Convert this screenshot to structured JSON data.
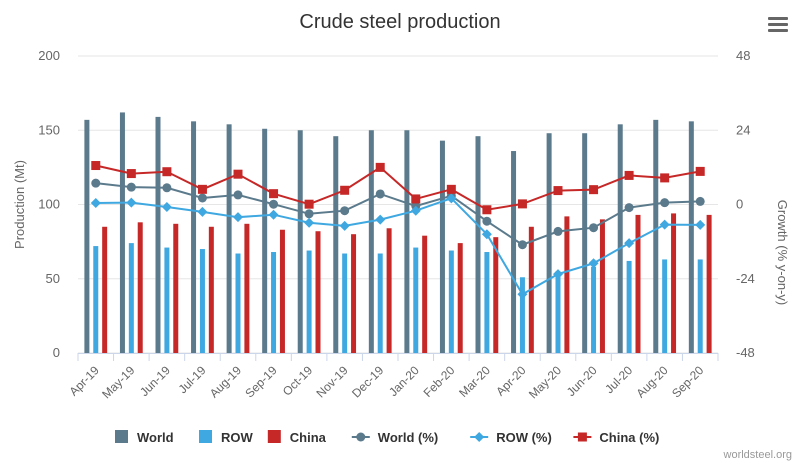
{
  "chart_data": {
    "type": "bar",
    "title": "Crude steel production",
    "categories": [
      "Apr-19",
      "May-19",
      "Jun-19",
      "Jul-19",
      "Aug-19",
      "Sep-19",
      "Oct-19",
      "Nov-19",
      "Dec-19",
      "Jan-20",
      "Feb-20",
      "Mar-20",
      "Apr-20",
      "May-20",
      "Jun-20",
      "Jul-20",
      "Aug-20",
      "Sep-20"
    ],
    "y_left": {
      "label": "Production (Mt)",
      "range": [
        0,
        200
      ],
      "ticks": [
        "0",
        "50",
        "100",
        "150",
        "200"
      ]
    },
    "y_right": {
      "label": "Growth (% y-on-y)",
      "range": [
        -48,
        48
      ],
      "ticks": [
        "-48",
        "-24",
        "0",
        "24",
        "48"
      ]
    },
    "grid": true,
    "legend_position": "bottom",
    "series": [
      {
        "name": "World",
        "type": "bar",
        "axis": "left",
        "color": "#5b7a8c",
        "values": [
          157,
          162,
          159,
          156,
          154,
          151,
          150,
          146,
          150,
          150,
          143,
          146,
          136,
          148,
          148,
          154,
          157,
          156
        ]
      },
      {
        "name": "ROW",
        "type": "bar",
        "axis": "left",
        "color": "#3fa8e0",
        "values": [
          72,
          74,
          71,
          70,
          67,
          68,
          69,
          67,
          67,
          71,
          69,
          68,
          51,
          55,
          58,
          62,
          63,
          63
        ]
      },
      {
        "name": "China",
        "type": "bar",
        "axis": "left",
        "color": "#c62828",
        "values": [
          85,
          88,
          87,
          85,
          87,
          83,
          82,
          80,
          84,
          79,
          74,
          78,
          85,
          92,
          90,
          93,
          94,
          93
        ]
      },
      {
        "name": "World (%)",
        "type": "line",
        "axis": "right",
        "color": "#5b7a8c",
        "marker": "circle",
        "values": [
          6.9,
          5.6,
          5.4,
          2.1,
          3.1,
          0.1,
          -3.0,
          -2.0,
          3.4,
          -0.5,
          2.8,
          -5.4,
          -13.0,
          -8.7,
          -7.5,
          -1.0,
          0.6,
          1.0
        ]
      },
      {
        "name": "ROW (%)",
        "type": "line",
        "axis": "right",
        "color": "#3fa8e0",
        "marker": "diamond",
        "values": [
          0.5,
          0.6,
          -0.8,
          -2.4,
          -4.1,
          -3.3,
          -5.9,
          -6.9,
          -4.9,
          -2.0,
          2.0,
          -9.6,
          -29.0,
          -22.5,
          -19.0,
          -12.5,
          -6.5,
          -6.6
        ]
      },
      {
        "name": "China (%)",
        "type": "line",
        "axis": "right",
        "color": "#c62828",
        "marker": "square",
        "values": [
          12.6,
          10.0,
          10.6,
          4.9,
          9.8,
          3.5,
          0.1,
          4.6,
          12.0,
          1.8,
          4.9,
          -1.7,
          0.2,
          4.5,
          4.8,
          9.4,
          8.6,
          10.7
        ]
      }
    ]
  },
  "credit": "worldsteel.org",
  "menu_icon": "hamburger-menu-icon"
}
